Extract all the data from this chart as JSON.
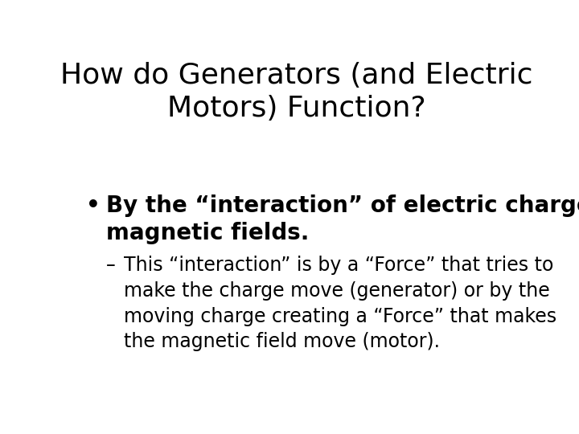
{
  "background_color": "#ffffff",
  "title_line1": "How do Generators (and Electric",
  "title_line2": "Motors) Function?",
  "title_fontsize": 26,
  "title_color": "#000000",
  "title_fontweight": "normal",
  "bullet_text_line1": "By the “interaction” of electric charge with",
  "bullet_text_line2": "magnetic fields.",
  "bullet_fontsize": 20,
  "bullet_color": "#000000",
  "bullet_fontweight": "bold",
  "sub_line1": "This “interaction” is by a “Force” that tries to",
  "sub_line2": "make the charge move (generator) or by the",
  "sub_line3": "moving charge creating a “Force” that makes",
  "sub_line4": "the magnetic field move (motor).",
  "sub_fontsize": 17,
  "sub_color": "#000000",
  "sub_fontweight": "normal",
  "bullet_symbol": "•",
  "dash_symbol": "–",
  "font_family": "DejaVu Sans"
}
